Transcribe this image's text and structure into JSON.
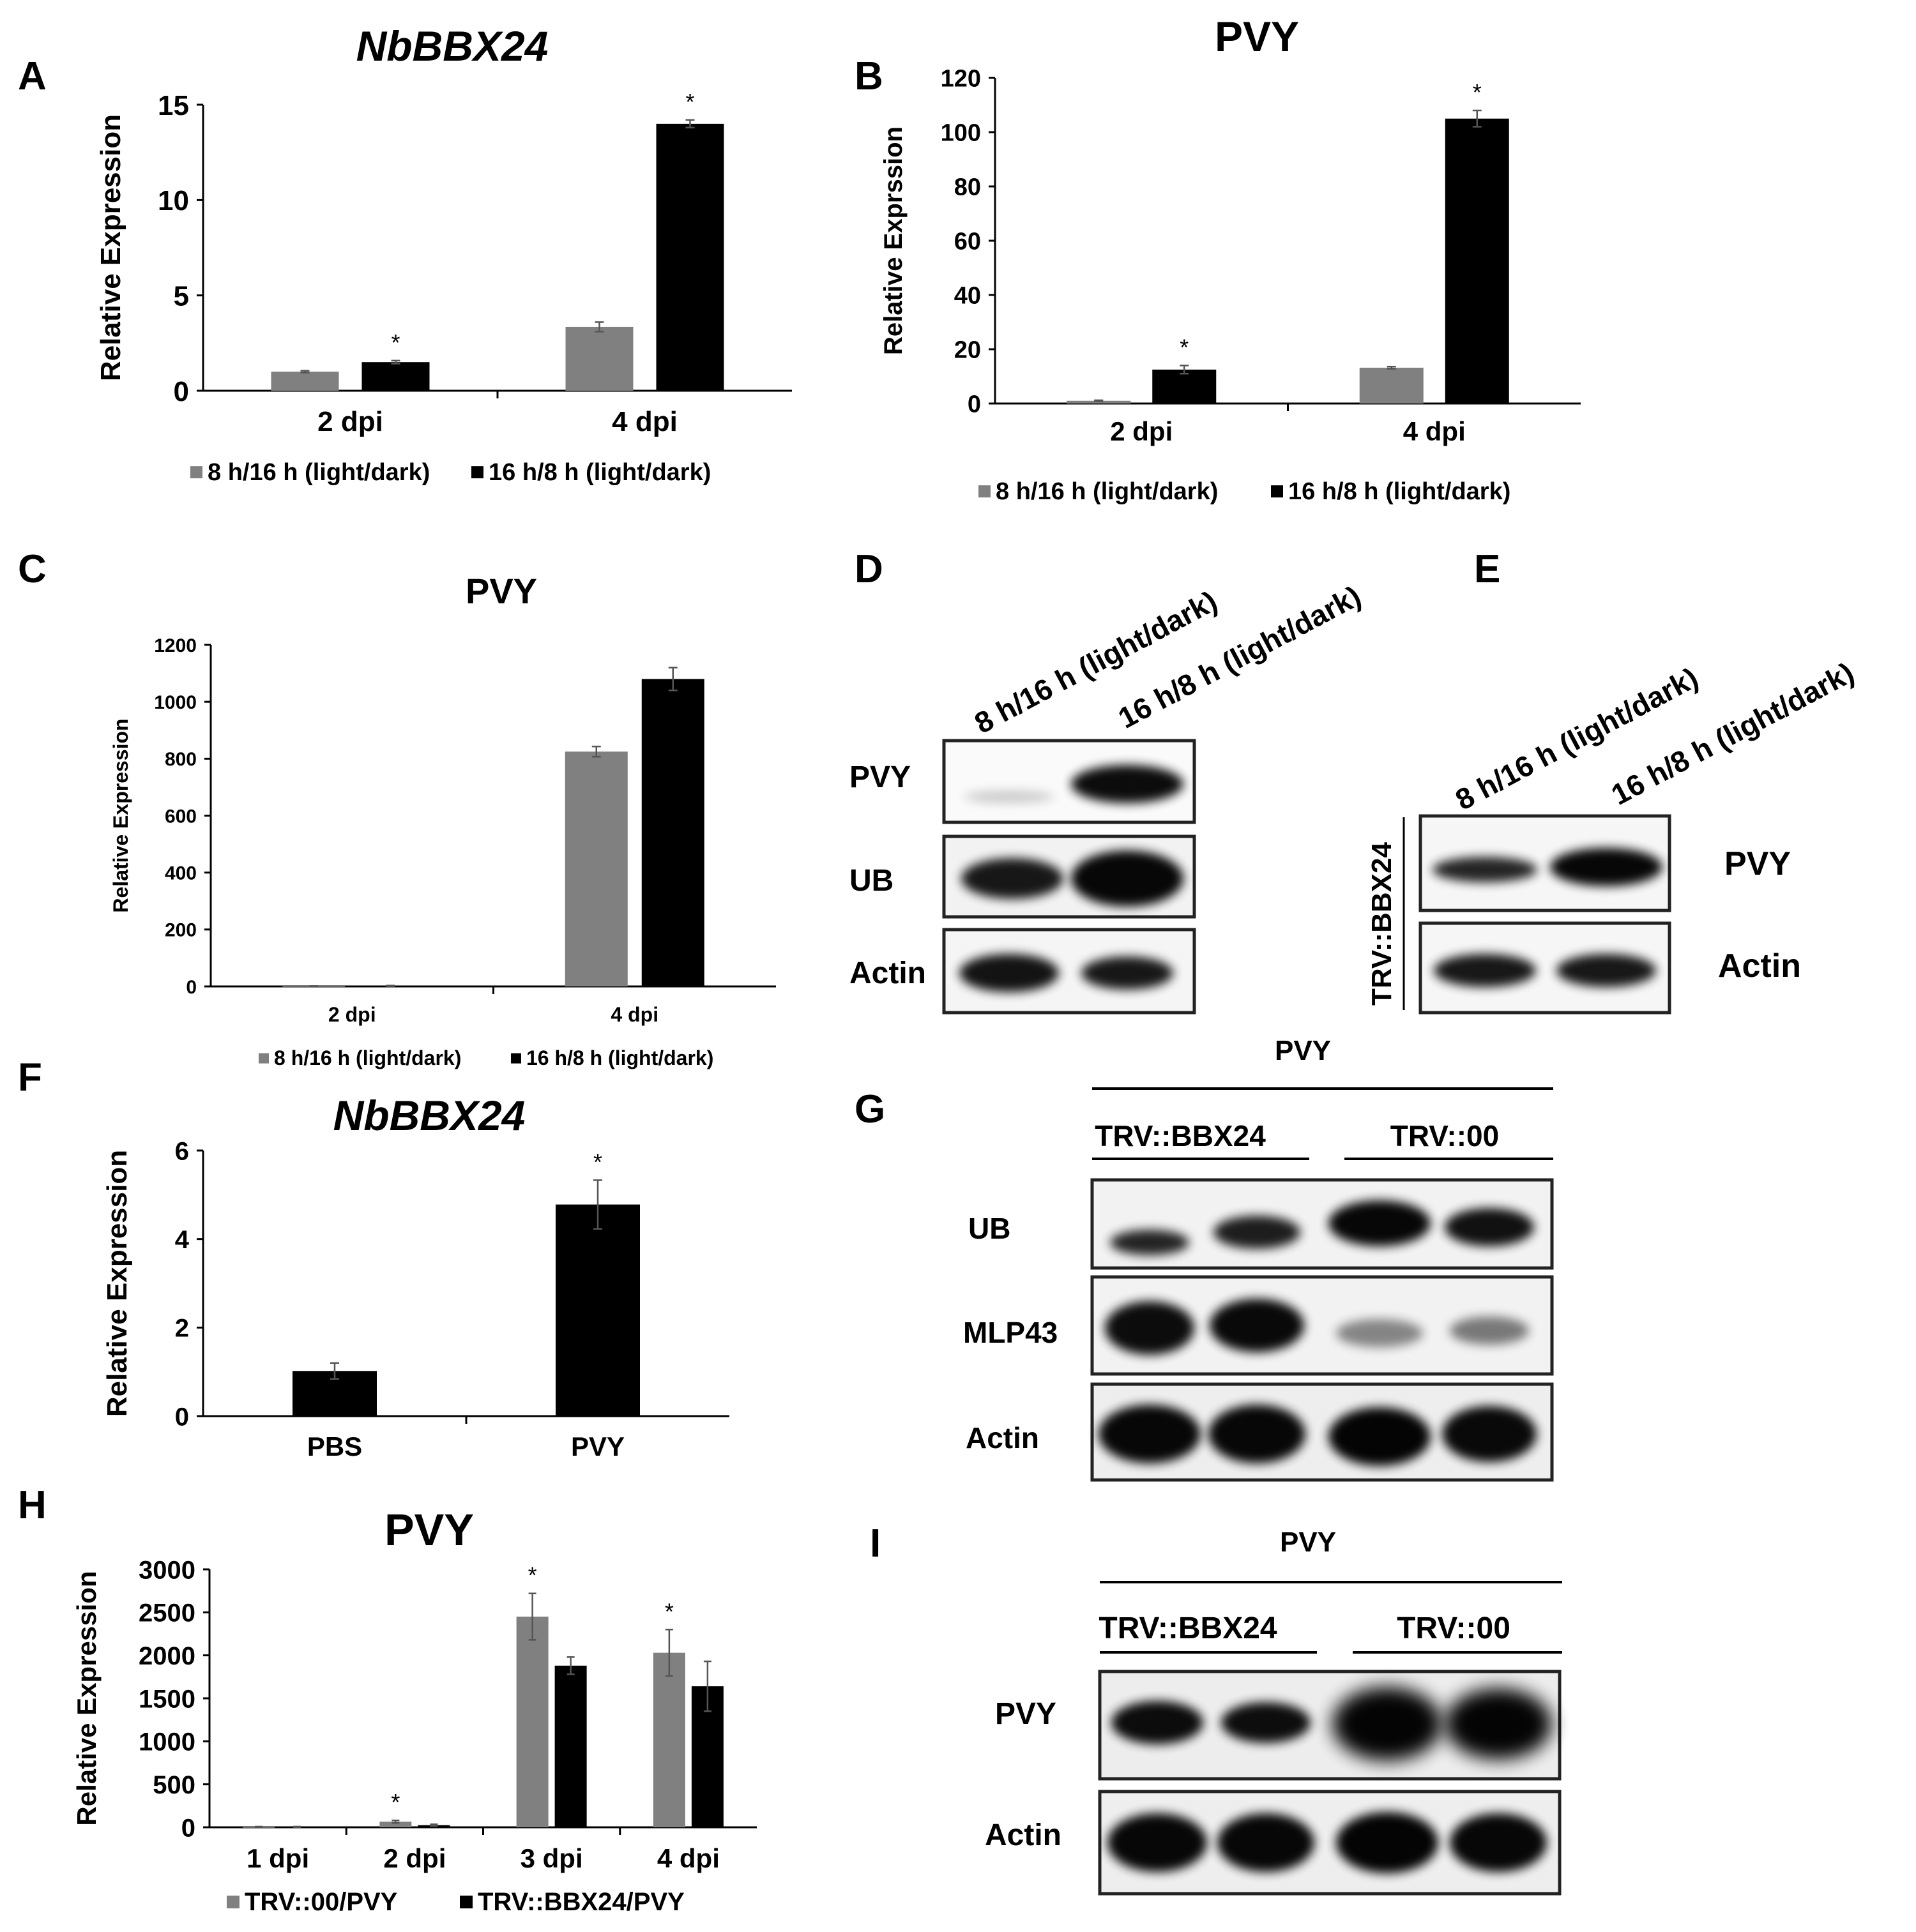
{
  "figure": {
    "panels": {
      "A": {
        "letter": "A",
        "title": "NbBBX24"
      },
      "B": {
        "letter": "B",
        "title": "PVY"
      },
      "C": {
        "letter": "C",
        "title": "PVY"
      },
      "D": {
        "letter": "D",
        "lanes": [
          "8 h/16 h (light/dark)",
          "16 h/8 h (light/dark)"
        ],
        "rows": [
          "PVY",
          "UB",
          "Actin"
        ]
      },
      "E": {
        "letter": "E",
        "lanes": [
          "8 h/16 h (light/dark)",
          "16 h/8 h (light/dark)"
        ],
        "side_label": "TRV::BBX24",
        "rows": [
          "PVY",
          "Actin"
        ]
      },
      "F": {
        "letter": "F",
        "title": "NbBBX24"
      },
      "G": {
        "letter": "G",
        "header": "PVY",
        "groups": [
          "TRV::BBX24",
          "TRV::00"
        ],
        "rows": [
          "UB",
          "MLP43",
          "Actin"
        ]
      },
      "H": {
        "letter": "H",
        "title": "PVY"
      },
      "I": {
        "letter": "I",
        "header": "PVY",
        "groups": [
          "TRV::BBX24",
          "TRV::00"
        ],
        "rows": [
          "PVY",
          "Actin"
        ]
      }
    }
  },
  "chart_data": [
    {
      "panel": "A",
      "type": "bar",
      "title": "NbBBX24",
      "xlabel": "",
      "ylabel": "Relative Expression",
      "categories": [
        "2 dpi",
        "4 dpi"
      ],
      "ylim": [
        0,
        15
      ],
      "yticks": [
        0,
        5,
        10,
        15
      ],
      "ytick_labels": [
        "0",
        "5",
        "10",
        "15"
      ],
      "series": [
        {
          "name": "8 h/16 h (light/dark)",
          "color": "#808080",
          "values": [
            1.0,
            3.35
          ],
          "errors": [
            0.05,
            0.25
          ],
          "stars": [
            "",
            ""
          ]
        },
        {
          "name": "16 h/8 h (light/dark)",
          "color": "#000000",
          "values": [
            1.5,
            14.0
          ],
          "errors": [
            0.08,
            0.2
          ],
          "stars": [
            "*",
            "*"
          ]
        }
      ],
      "legend": "bottom"
    },
    {
      "panel": "B",
      "type": "bar",
      "title": "PVY",
      "xlabel": "",
      "ylabel": "Relative Exprssion",
      "categories": [
        "2 dpi",
        "4 dpi"
      ],
      "ylim": [
        0,
        120
      ],
      "yticks": [
        0,
        20,
        40,
        60,
        80,
        100,
        120
      ],
      "ytick_labels": [
        "0",
        "20",
        "40",
        "60",
        "80",
        "100",
        "120"
      ],
      "series": [
        {
          "name": "8 h/16 h (light/dark)",
          "color": "#808080",
          "values": [
            1,
            13.2
          ],
          "errors": [
            0.2,
            0.4
          ],
          "stars": [
            "",
            ""
          ]
        },
        {
          "name": "16 h/8 h (light/dark)",
          "color": "#000000",
          "values": [
            12.5,
            105
          ],
          "errors": [
            1.5,
            3
          ],
          "stars": [
            "*",
            "*"
          ]
        }
      ],
      "legend": "bottom"
    },
    {
      "panel": "C",
      "type": "bar",
      "title": "PVY",
      "xlabel": "",
      "ylabel": "Relative Expression",
      "categories": [
        "2 dpi",
        "4 dpi"
      ],
      "ylim": [
        0,
        1200
      ],
      "yticks": [
        0,
        200,
        400,
        600,
        800,
        1000,
        1200
      ],
      "ytick_labels": [
        "0",
        "200",
        "400",
        "600",
        "800",
        "1000",
        "1200"
      ],
      "series": [
        {
          "name": "8 h/16 h (light/dark)",
          "color": "#808080",
          "values": [
            1,
            825
          ],
          "errors": [
            0.5,
            18
          ],
          "stars": [
            "",
            ""
          ]
        },
        {
          "name": "16 h/8 h (light/dark)",
          "color": "#000000",
          "values": [
            2,
            1080
          ],
          "errors": [
            1,
            40
          ],
          "stars": [
            "",
            ""
          ]
        }
      ],
      "legend": "bottom"
    },
    {
      "panel": "F",
      "type": "bar",
      "title": "NbBBX24",
      "xlabel": "",
      "ylabel": "Relative Expression",
      "categories": [
        "PBS",
        "PVY"
      ],
      "ylim": [
        0,
        6
      ],
      "yticks": [
        0,
        2,
        4,
        6
      ],
      "ytick_labels": [
        "0",
        "2",
        "4",
        "6"
      ],
      "series": [
        {
          "name": "",
          "color": "#000000",
          "values": [
            1.02,
            4.78
          ],
          "errors": [
            0.18,
            0.55
          ],
          "stars": [
            "",
            "*"
          ]
        }
      ],
      "legend": "none"
    },
    {
      "panel": "H",
      "type": "bar",
      "title": "PVY",
      "xlabel": "",
      "ylabel": "Relative Expression",
      "categories": [
        "1 dpi",
        "2 dpi",
        "3 dpi",
        "4 dpi"
      ],
      "ylim": [
        0,
        3000
      ],
      "yticks": [
        0,
        500,
        1000,
        1500,
        2000,
        2500,
        3000
      ],
      "ytick_labels": [
        "0",
        "500",
        "1000",
        "1500",
        "2000",
        "2500",
        "3000"
      ],
      "series": [
        {
          "name": "TRV::00/PVY",
          "color": "#808080",
          "values": [
            5,
            65,
            2450,
            2030
          ],
          "errors": [
            3,
            15,
            270,
            270
          ],
          "stars": [
            "",
            "*",
            "*",
            "*"
          ]
        },
        {
          "name": "TRV::BBX24/PVY",
          "color": "#000000",
          "values": [
            5,
            25,
            1880,
            1640
          ],
          "errors": [
            3,
            10,
            100,
            290
          ],
          "stars": [
            "",
            "",
            "",
            ""
          ]
        }
      ],
      "legend": "bottom"
    }
  ]
}
